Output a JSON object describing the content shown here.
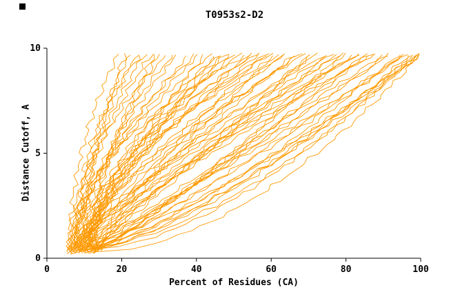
{
  "figure": {
    "corner_marker": "black-square"
  },
  "chart_data": {
    "type": "line",
    "title": "T0953s2-D2",
    "xlabel": "Percent of Residues (CA)",
    "ylabel": "Distance Cutoff, A",
    "xlim": [
      0,
      100
    ],
    "ylim": [
      0,
      10
    ],
    "xticks": [
      0,
      20,
      40,
      60,
      80,
      100
    ],
    "yticks": [
      0,
      5,
      10
    ],
    "grid": false,
    "legend": "none",
    "line_color": "#ff9900",
    "axis_color": "#000000",
    "background": "#ffffff",
    "y_start": 0.35,
    "y_end": 9.7,
    "curve_model": "Each model curve: x(y) = x_start + (x_end - x_start) * ((y - y_start)/(y_end - y_start))^k ; entries are [x_start_percent, x_end_percent, k]",
    "curves": [
      [
        6,
        19,
        2.0
      ],
      [
        8,
        22,
        1.8
      ],
      [
        10,
        24,
        2.2
      ],
      [
        7,
        26,
        1.7
      ],
      [
        9,
        28,
        2.0
      ],
      [
        11,
        30,
        1.6
      ],
      [
        6,
        32,
        1.9
      ],
      [
        12,
        34,
        2.2
      ],
      [
        8,
        25,
        2.4
      ],
      [
        10,
        21,
        1.8
      ],
      [
        13,
        29,
        2.0
      ],
      [
        7,
        35,
        1.6
      ],
      [
        6,
        38,
        1.5
      ],
      [
        9,
        40,
        1.9
      ],
      [
        11,
        42,
        1.3
      ],
      [
        7,
        44,
        1.7
      ],
      [
        13,
        46,
        2.0
      ],
      [
        8,
        48,
        1.25
      ],
      [
        10,
        50,
        1.6
      ],
      [
        12,
        52,
        1.9
      ],
      [
        6,
        54,
        1.45
      ],
      [
        9,
        56,
        1.75
      ],
      [
        14,
        58,
        1.25
      ],
      [
        7,
        60,
        1.55
      ],
      [
        11,
        62,
        1.85
      ],
      [
        8,
        64,
        1.35
      ],
      [
        10,
        45,
        1.15
      ],
      [
        12,
        49,
        1.7
      ],
      [
        6,
        53,
        2.0
      ],
      [
        9,
        57,
        1.45
      ],
      [
        13,
        61,
        1.15
      ],
      [
        7,
        41,
        1.6
      ],
      [
        11,
        47,
        1.85
      ],
      [
        8,
        55,
        1.35
      ],
      [
        10,
        63,
        1.5
      ],
      [
        12,
        59,
        1.75
      ],
      [
        6,
        66,
        1.05
      ],
      [
        9,
        68,
        1.35
      ],
      [
        11,
        70,
        0.9
      ],
      [
        7,
        72,
        1.15
      ],
      [
        13,
        74,
        1.45
      ],
      [
        8,
        76,
        1.0
      ],
      [
        10,
        78,
        1.25
      ],
      [
        12,
        80,
        0.85
      ],
      [
        6,
        82,
        1.1
      ],
      [
        9,
        84,
        1.35
      ],
      [
        14,
        86,
        0.95
      ],
      [
        7,
        88,
        1.2
      ],
      [
        11,
        90,
        1.05
      ],
      [
        8,
        92,
        0.9
      ],
      [
        10,
        67,
        1.3
      ],
      [
        12,
        71,
        1.0
      ],
      [
        6,
        75,
        1.15
      ],
      [
        9,
        79,
        0.8
      ],
      [
        13,
        83,
        1.25
      ],
      [
        7,
        87,
        1.1
      ],
      [
        11,
        91,
        0.95
      ],
      [
        8,
        69,
        1.4
      ],
      [
        10,
        77,
        1.05
      ],
      [
        12,
        85,
        0.9
      ],
      [
        6,
        94,
        0.7
      ],
      [
        9,
        96,
        0.85
      ],
      [
        11,
        98,
        0.6
      ],
      [
        7,
        100,
        0.75
      ],
      [
        13,
        95,
        0.9
      ],
      [
        8,
        97,
        0.65
      ],
      [
        10,
        99,
        0.8
      ],
      [
        12,
        100,
        0.55
      ],
      [
        6,
        96,
        0.9
      ],
      [
        9,
        100,
        0.7
      ],
      [
        14,
        98,
        0.75
      ],
      [
        7,
        99,
        0.6
      ]
    ]
  }
}
